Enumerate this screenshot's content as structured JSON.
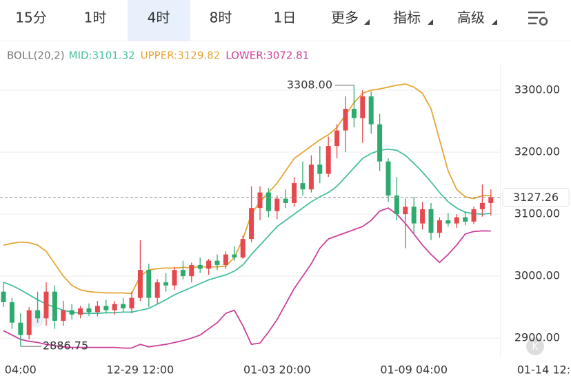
{
  "tabs": [
    "15分",
    "1时",
    "4时",
    "8时",
    "1日",
    "更多",
    "指标",
    "高级"
  ],
  "selected_tab": 2,
  "chart_data": {
    "type": "candlestick",
    "legend": {
      "name": "BOLL(20,2)",
      "items": [
        {
          "label": "MID:3101.32",
          "color": "#45bfa0"
        },
        {
          "label": "UPPER:3129.82",
          "color": "#e6a532"
        },
        {
          "label": "LOWER:3072.81",
          "color": "#cc3f9b"
        }
      ]
    },
    "categories": [
      null,
      null,
      "04:00",
      null,
      null,
      null,
      null,
      null,
      null,
      null,
      null,
      null,
      null,
      null,
      null,
      null,
      "12-29 12:00",
      null,
      null,
      null,
      null,
      null,
      null,
      null,
      null,
      null,
      null,
      null,
      null,
      null,
      null,
      null,
      "01-03 20:00",
      null,
      null,
      null,
      null,
      null,
      null,
      null,
      null,
      null,
      null,
      null,
      null,
      null,
      null,
      null,
      "01-09 04:00",
      null,
      null,
      null,
      null,
      null,
      null,
      null,
      null,
      null,
      null,
      null,
      null,
      null,
      null,
      null,
      "01-14 12:00"
    ],
    "open": [
      2975,
      2958,
      2925,
      2905,
      2945,
      2932,
      2975,
      2928,
      2945,
      2938,
      2948,
      2942,
      2952,
      2945,
      2955,
      2948,
      2965,
      3010,
      2965,
      2990,
      2985,
      3010,
      3000,
      3018,
      3012,
      3025,
      3018,
      3035,
      3030,
      3060,
      3110,
      3135,
      3105,
      3125,
      3118,
      3150,
      3140,
      3180,
      3165,
      3210,
      3235,
      3270,
      3255,
      3290,
      3245,
      3185,
      3130,
      3100,
      3112,
      3085,
      3108,
      3070,
      3090,
      3085,
      3095,
      3088,
      3108,
      3118,
      null,
      null,
      null,
      null,
      null,
      null,
      null
    ],
    "high": [
      2990,
      2965,
      2940,
      2950,
      2975,
      2990,
      2985,
      2960,
      2955,
      2952,
      2956,
      2960,
      2962,
      2960,
      2965,
      2975,
      3058,
      3020,
      2995,
      3005,
      3015,
      3025,
      3022,
      3030,
      3028,
      3035,
      3040,
      3048,
      3065,
      3145,
      3145,
      3142,
      3130,
      3140,
      3160,
      3185,
      3195,
      3210,
      3225,
      3245,
      3290,
      3308,
      3300,
      3298,
      3262,
      3190,
      3160,
      3125,
      3128,
      3120,
      3118,
      3095,
      3102,
      3100,
      3105,
      3112,
      3148,
      3140,
      null,
      null,
      null,
      null,
      null,
      null,
      null
    ],
    "low": [
      2950,
      2915,
      2886.75,
      2898,
      2925,
      2920,
      2915,
      2920,
      2930,
      2932,
      2936,
      2935,
      2940,
      2938,
      2942,
      2940,
      2960,
      2950,
      2955,
      2975,
      2978,
      2995,
      2990,
      3005,
      3002,
      3010,
      3012,
      3025,
      3028,
      3055,
      3090,
      3095,
      3092,
      3110,
      3112,
      3130,
      3135,
      3150,
      3160,
      3190,
      3200,
      3240,
      3215,
      3230,
      3170,
      3120,
      3090,
      3045,
      3070,
      3075,
      3058,
      3062,
      3080,
      3078,
      3082,
      3084,
      3096,
      3098,
      null,
      null,
      null,
      null,
      null,
      null,
      null
    ],
    "close": [
      2958,
      2925,
      2905,
      2945,
      2932,
      2975,
      2928,
      2945,
      2938,
      2948,
      2942,
      2952,
      2945,
      2955,
      2948,
      2965,
      3010,
      2965,
      2990,
      2985,
      3010,
      3000,
      3018,
      3012,
      3025,
      3018,
      3035,
      3030,
      3060,
      3110,
      3135,
      3105,
      3125,
      3118,
      3150,
      3140,
      3180,
      3165,
      3210,
      3235,
      3270,
      3255,
      3290,
      3245,
      3185,
      3130,
      3100,
      3112,
      3085,
      3108,
      3070,
      3090,
      3085,
      3095,
      3088,
      3108,
      3118,
      3127.26,
      null,
      null,
      null,
      null,
      null,
      null,
      null
    ],
    "up_color": "#e5484d",
    "down_color": "#2eaa6e",
    "bands": [
      {
        "color": "#e6a532",
        "values": [
          3050,
          3053,
          3055,
          3054,
          3050,
          3040,
          3020,
          3000,
          2985,
          2978,
          2975,
          2974,
          2973,
          2973,
          2973,
          2972,
          3000,
          3010,
          3012,
          3013,
          3013,
          3014,
          3014,
          3015,
          3015,
          3015,
          3016,
          3030,
          3060,
          3100,
          3120,
          3135,
          3150,
          3170,
          3190,
          3200,
          3210,
          3220,
          3228,
          3240,
          3260,
          3280,
          3295,
          3300,
          3302,
          3305,
          3308,
          3310,
          3305,
          3295,
          3270,
          3220,
          3170,
          3140,
          3128,
          3125,
          3130,
          3129.82,
          null,
          null,
          null,
          null,
          null,
          null,
          null
        ]
      },
      {
        "color": "#45bfa0",
        "values": [
          2990,
          2985,
          2978,
          2970,
          2962,
          2955,
          2950,
          2945,
          2942,
          2940,
          2940,
          2940,
          2941,
          2941,
          2942,
          2942,
          2945,
          2948,
          2955,
          2962,
          2970,
          2976,
          2982,
          2988,
          2994,
          2998,
          3002,
          3008,
          3018,
          3035,
          3050,
          3065,
          3080,
          3090,
          3100,
          3110,
          3120,
          3128,
          3135,
          3145,
          3160,
          3175,
          3190,
          3198,
          3203,
          3205,
          3203,
          3195,
          3182,
          3168,
          3152,
          3135,
          3120,
          3110,
          3103,
          3101,
          3100,
          3101.32,
          null,
          null,
          null,
          null,
          null,
          null,
          null
        ]
      },
      {
        "color": "#cc3f9b",
        "values": [
          2912,
          2905,
          2898,
          2895,
          2893,
          2890,
          2888,
          2886,
          2885,
          2885,
          2885,
          2885,
          2885,
          2885,
          2884,
          2884,
          2890,
          2886,
          2888,
          2890,
          2893,
          2896,
          2900,
          2905,
          2915,
          2925,
          2940,
          2945,
          2920,
          2890,
          2892,
          2910,
          2930,
          2955,
          2980,
          3000,
          3020,
          3045,
          3060,
          3065,
          3070,
          3075,
          3080,
          3090,
          3105,
          3110,
          3100,
          3085,
          3068,
          3050,
          3035,
          3022,
          3035,
          3050,
          3068,
          3072,
          3073,
          3072.81,
          null,
          null,
          null,
          null,
          null,
          null,
          null
        ]
      }
    ],
    "ylim": [
      2868,
      3340
    ],
    "yticks": [
      {
        "value": 2900,
        "label": "2900.00"
      },
      {
        "value": 3000,
        "label": "3000.00"
      },
      {
        "value": 3100,
        "label": "3100.00"
      },
      {
        "value": 3200,
        "label": "3200.00"
      },
      {
        "value": 3300,
        "label": "3300.00"
      }
    ],
    "grid": true,
    "last_price": 3127.26,
    "high_label": {
      "value": 3308,
      "label": "3308.00"
    },
    "low_label": 2886.75
  }
}
